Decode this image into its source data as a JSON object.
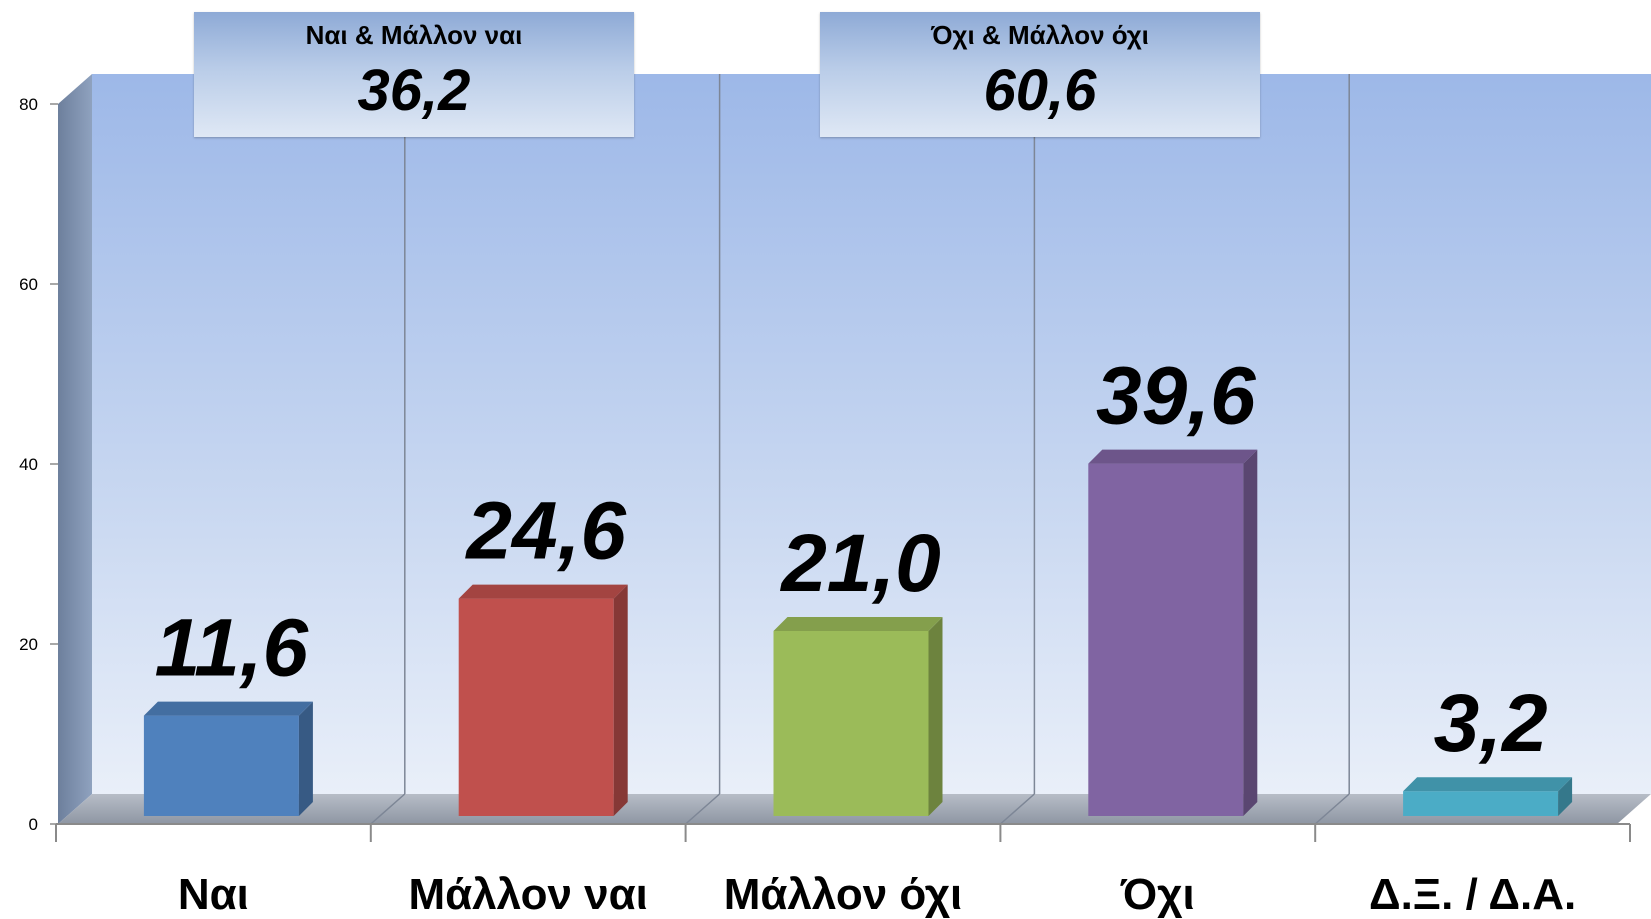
{
  "chart_data": {
    "type": "bar",
    "categories": [
      "Ναι",
      "Μάλλον ναι",
      "Μάλλον όχι",
      "Όχι",
      "Δ.Ξ. / Δ.Α."
    ],
    "values": [
      11.6,
      24.6,
      21.0,
      39.6,
      3.2
    ],
    "value_labels": [
      "11,6",
      "24,6",
      "21,0",
      "39,6",
      "3,2"
    ],
    "colors": [
      "#4f81bd",
      "#c0504d",
      "#9bbb59",
      "#8064a2",
      "#4bacc6"
    ],
    "ylim": [
      0,
      80
    ],
    "yticks": [
      0,
      20,
      40,
      60,
      80
    ],
    "grid": "vertical separators",
    "style": "3d-column"
  },
  "summaries": [
    {
      "label": "Ναι & Μάλλον ναι",
      "value": "36,2"
    },
    {
      "label": "Όχι & Μάλλον όχι",
      "value": "60,6"
    }
  ]
}
